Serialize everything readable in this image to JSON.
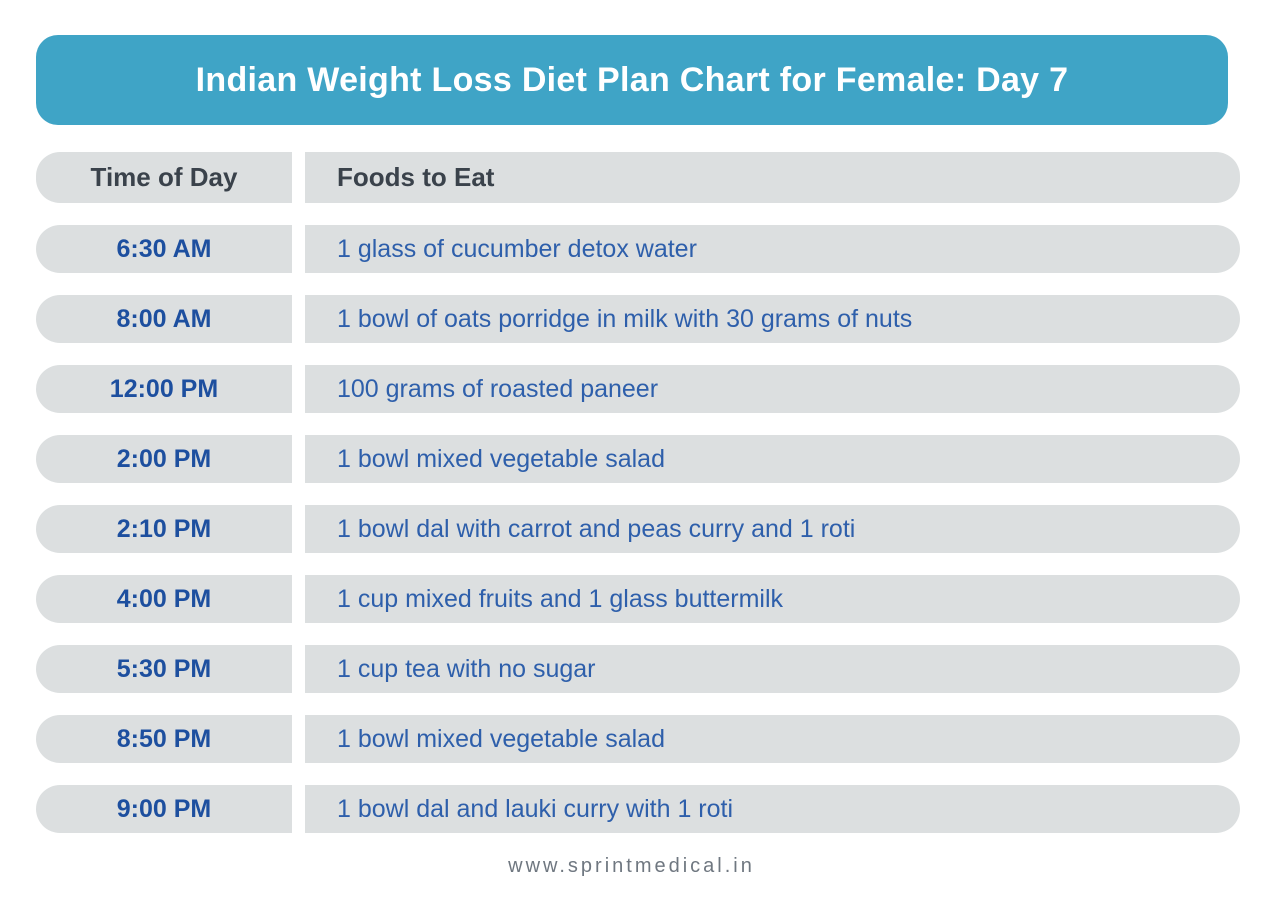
{
  "page": {
    "title": "Indian Weight Loss Diet Plan Chart for Female: Day 7",
    "footer": "www.sprintmedical.in"
  },
  "colors": {
    "banner_bg": "#3fa4c6",
    "banner_text": "#ffffff",
    "row_bg": "#dcdfe0",
    "header_text": "#3a424b",
    "time_text": "#1d4f9f",
    "food_text": "#2e5fab",
    "footer_text": "#6f7780",
    "page_bg": "#ffffff"
  },
  "chart_data": {
    "type": "table",
    "title": "Indian Weight Loss Diet Plan Chart for Female: Day 7",
    "columns": [
      "Time of Day",
      "Foods to Eat"
    ],
    "rows": [
      [
        "6:30 AM",
        "1 glass of cucumber detox water"
      ],
      [
        "8:00 AM",
        "1 bowl of oats porridge in milk with 30 grams of nuts"
      ],
      [
        "12:00 PM",
        "100 grams of roasted paneer"
      ],
      [
        "2:00 PM",
        "1 bowl mixed vegetable salad"
      ],
      [
        "2:10 PM",
        "1 bowl dal with carrot and peas curry and 1 roti"
      ],
      [
        "4:00 PM",
        "1 cup mixed fruits and 1 glass buttermilk"
      ],
      [
        "5:30 PM",
        "1 cup tea with no sugar"
      ],
      [
        "8:50 PM",
        "1 bowl mixed vegetable salad"
      ],
      [
        "9:00 PM",
        "1 bowl dal and lauki curry with 1 roti"
      ]
    ]
  }
}
